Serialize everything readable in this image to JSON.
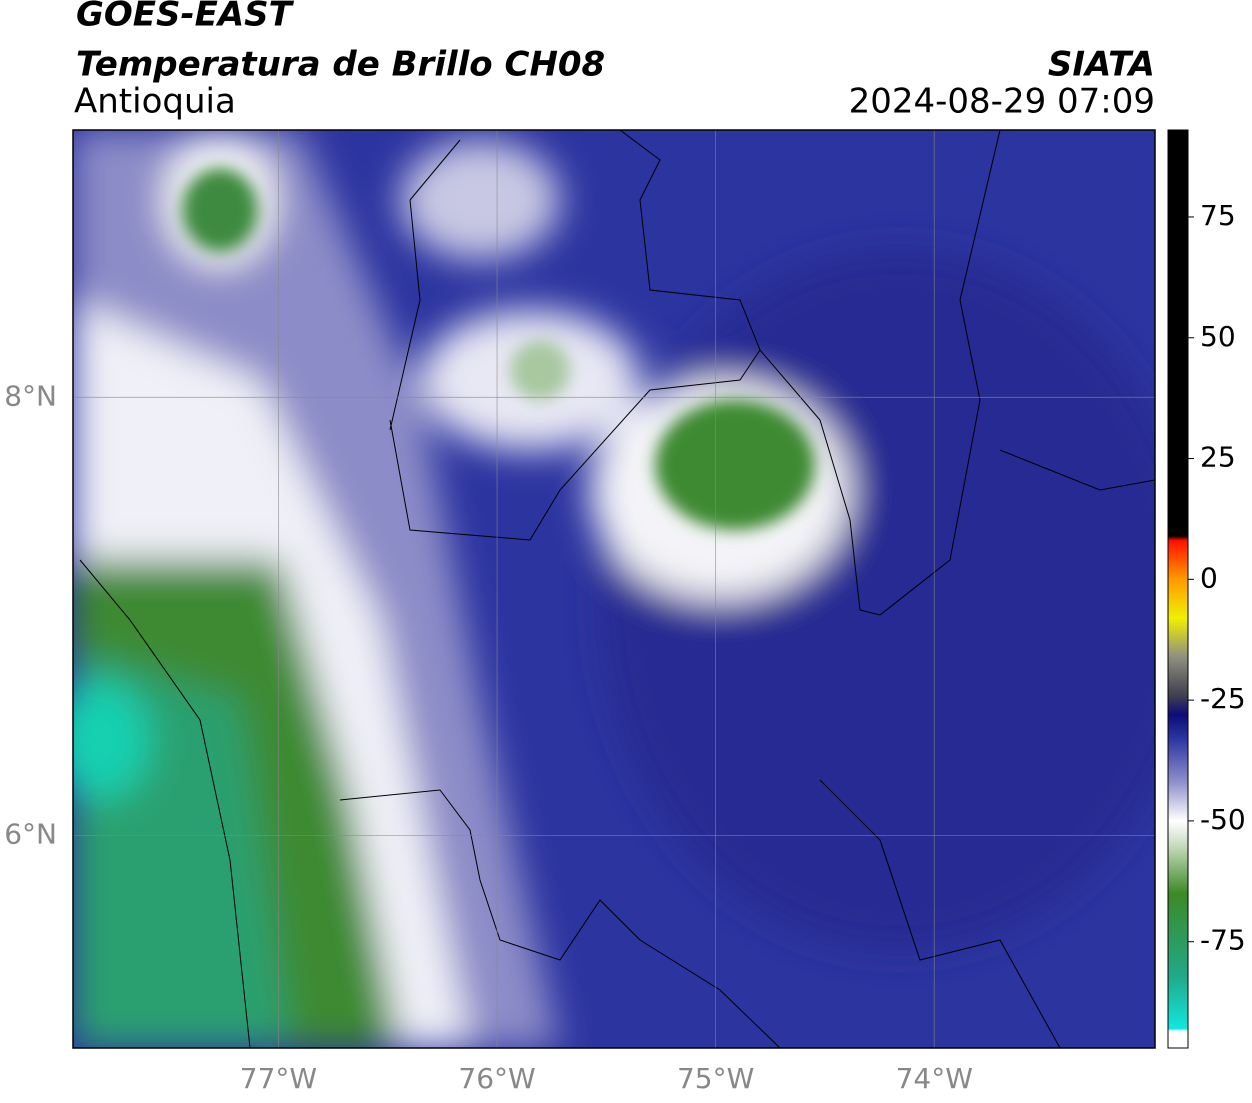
{
  "header": {
    "title": "GOES-EAST",
    "subtitle": "Temperatura de Brillo CH08",
    "region": "Antioquia",
    "source": "SIATA",
    "datetime": "2024-08-29 07:09"
  },
  "map": {
    "xlim": [
      -77.94,
      -72.99
    ],
    "ylim": [
      5.03,
      9.22
    ],
    "xticks": [
      {
        "value": -77,
        "label": "77°W"
      },
      {
        "value": -76,
        "label": "76°W"
      },
      {
        "value": -75,
        "label": "75°W"
      },
      {
        "value": -74,
        "label": "74°W"
      }
    ],
    "yticks": [
      {
        "value": 8,
        "label": "8°N"
      },
      {
        "value": 6,
        "label": "6°N"
      }
    ],
    "grid": true
  },
  "colorbar": {
    "ylim": [
      -97,
      93
    ],
    "yticks": [
      75,
      50,
      25,
      0,
      -25,
      -50,
      -75
    ],
    "stops": [
      {
        "value": -97,
        "color": "#ffffff"
      },
      {
        "value": -93.5,
        "color": "#ffffff"
      },
      {
        "value": -93,
        "color": "#10e8dc"
      },
      {
        "value": -82,
        "color": "#22a888"
      },
      {
        "value": -65,
        "color": "#3c8a24"
      },
      {
        "value": -55,
        "color": "#c8dcc0"
      },
      {
        "value": -50,
        "color": "#ffffff"
      },
      {
        "value": -42,
        "color": "#9090cc"
      },
      {
        "value": -33,
        "color": "#2c36a0"
      },
      {
        "value": -28,
        "color": "#0c0c78"
      },
      {
        "value": -24,
        "color": "#404050"
      },
      {
        "value": -16,
        "color": "#909080"
      },
      {
        "value": -8,
        "color": "#f0f000"
      },
      {
        "value": 0,
        "color": "#ff9a00"
      },
      {
        "value": 8,
        "color": "#ff1000"
      },
      {
        "value": 9,
        "color": "#000000"
      },
      {
        "value": 93,
        "color": "#000000"
      }
    ]
  }
}
